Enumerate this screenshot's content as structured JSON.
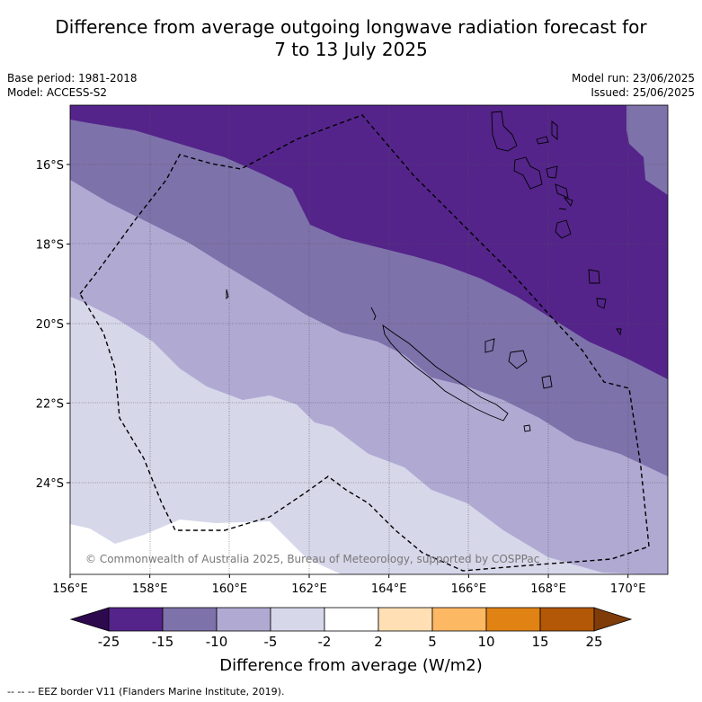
{
  "title": "Difference from average outgoing longwave radiation forecast for",
  "title_line2": "7 to 13 July 2025",
  "base_period": "Base period: 1981-2018",
  "model": "Model: ACCESS-S2",
  "model_run": "Model run: 23/06/2025",
  "issued": "Issued: 25/06/2025",
  "copyright": "© Commonwealth of Australia 2025, Bureau of Meteorology, supported by COSPPac",
  "footer": "-- -- -- EEZ border V11 (Flanders Marine Institute, 2019).",
  "map": {
    "lon_range": [
      156,
      171
    ],
    "lat_range": [
      -26.0,
      -14.8
    ],
    "lon_ticks": [
      "156°E",
      "158°E",
      "160°E",
      "162°E",
      "164°E",
      "166°E",
      "168°E",
      "170°E"
    ],
    "lat_ticks": [
      "16°S",
      "18°S",
      "20°S",
      "22°S",
      "24°S"
    ],
    "grid": true
  },
  "colorbar": {
    "title": "Difference from average (W/m2)",
    "ticks": [
      "-25",
      "-15",
      "-10",
      "-5",
      "-2",
      "2",
      "5",
      "10",
      "15",
      "25"
    ],
    "colors": [
      "#2d0a4e",
      "#54248a",
      "#7e72ab",
      "#b0aad3",
      "#d7d7ea",
      "#ffffff",
      "#ffdfb3",
      "#fdb863",
      "#e08214",
      "#b35806",
      "#7f3b08"
    ]
  }
}
